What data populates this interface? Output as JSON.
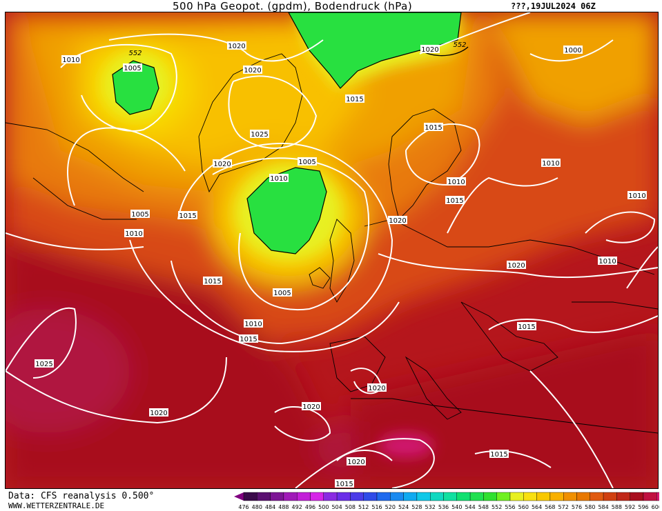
{
  "header": {
    "title": "500 hPa Geopot. (gpdm), Bodendruck (hPa)",
    "datetime": "???,19JUL2024 06Z"
  },
  "footer": {
    "source": "Data: CFS reanalysis 0.500°",
    "website": "WWW.WETTERZENTRALE.DE"
  },
  "colorbar": {
    "ticks": [
      "476",
      "480",
      "484",
      "488",
      "492",
      "496",
      "500",
      "504",
      "508",
      "512",
      "516",
      "520",
      "524",
      "528",
      "532",
      "536",
      "540",
      "544",
      "548",
      "552",
      "556",
      "560",
      "564",
      "568",
      "572",
      "576",
      "580",
      "584",
      "588",
      "592",
      "596",
      "600"
    ],
    "colors": [
      "#3a0a4a",
      "#5a1070",
      "#7d1595",
      "#a01ab8",
      "#c21fd8",
      "#d625e8",
      "#8a2be2",
      "#6a2ee8",
      "#4b3be8",
      "#2f4be8",
      "#1f6aee",
      "#1a8af0",
      "#10aaf0",
      "#10c8e8",
      "#10d8c0",
      "#10e0a0",
      "#10e070",
      "#20e050",
      "#30e030",
      "#70f020",
      "#e8f020",
      "#f8e010",
      "#f8c800",
      "#f8b000",
      "#f09000",
      "#e87800",
      "#e05a10",
      "#d04010",
      "#c02818",
      "#a80e1e",
      "#c01040",
      "#d81870"
    ],
    "under_color": "#800080",
    "over_color": "#d01890"
  },
  "map": {
    "isobars": [
      {
        "label": "1010"
      },
      {
        "label": "1020"
      },
      {
        "label": "1020"
      },
      {
        "label": "1020"
      },
      {
        "label": "1000"
      },
      {
        "label": "1005"
      },
      {
        "label": "1015"
      },
      {
        "label": "1015"
      },
      {
        "label": "1025"
      },
      {
        "label": "1020"
      },
      {
        "label": "1010"
      },
      {
        "label": "1005"
      },
      {
        "label": "1010"
      },
      {
        "label": "1010"
      },
      {
        "label": "1015"
      },
      {
        "label": "1005"
      },
      {
        "label": "1010"
      },
      {
        "label": "1015"
      },
      {
        "label": "1020"
      },
      {
        "label": "1010"
      },
      {
        "label": "1020"
      },
      {
        "label": "1010"
      },
      {
        "label": "1015"
      },
      {
        "label": "1005"
      },
      {
        "label": "1010"
      },
      {
        "label": "1015"
      },
      {
        "label": "1015"
      },
      {
        "label": "1025"
      },
      {
        "label": "1020"
      },
      {
        "label": "1020"
      },
      {
        "label": "1020"
      },
      {
        "label": "1015"
      },
      {
        "label": "1020"
      },
      {
        "label": "1015"
      }
    ],
    "geopotential_labels": [
      {
        "label": "552"
      },
      {
        "label": "552"
      }
    ]
  }
}
